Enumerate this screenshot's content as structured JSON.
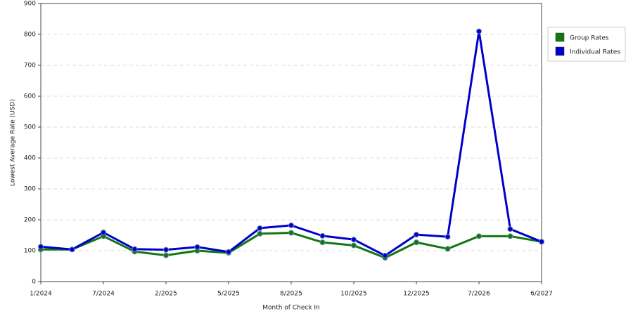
{
  "chart_data": {
    "type": "line",
    "x_label": "Month of Check In",
    "y_label": "Lowest Average Rate (USD)",
    "categories": [
      "1/2024",
      null,
      "7/2024",
      null,
      "2/2025",
      null,
      "5/2025",
      null,
      "8/2025",
      null,
      "10/2025",
      null,
      "12/2025",
      null,
      "7/2026",
      null,
      "6/2027"
    ],
    "series": [
      {
        "name": "Group Rates",
        "color": "#117711",
        "values": [
          104,
          104,
          147,
          97,
          85,
          100,
          93,
          155,
          158,
          127,
          117,
          77,
          127,
          106,
          147,
          147,
          129
        ]
      },
      {
        "name": "Individual Rates",
        "color": "#0000cc",
        "values": [
          113,
          104,
          159,
          105,
          103,
          112,
          96,
          173,
          182,
          148,
          136,
          84,
          152,
          145,
          810,
          170,
          129
        ]
      }
    ],
    "ylim": [
      0,
      900
    ],
    "yticks": [
      0,
      100,
      200,
      300,
      400,
      500,
      600,
      700,
      800,
      900
    ],
    "grid": true,
    "legend": "right"
  }
}
